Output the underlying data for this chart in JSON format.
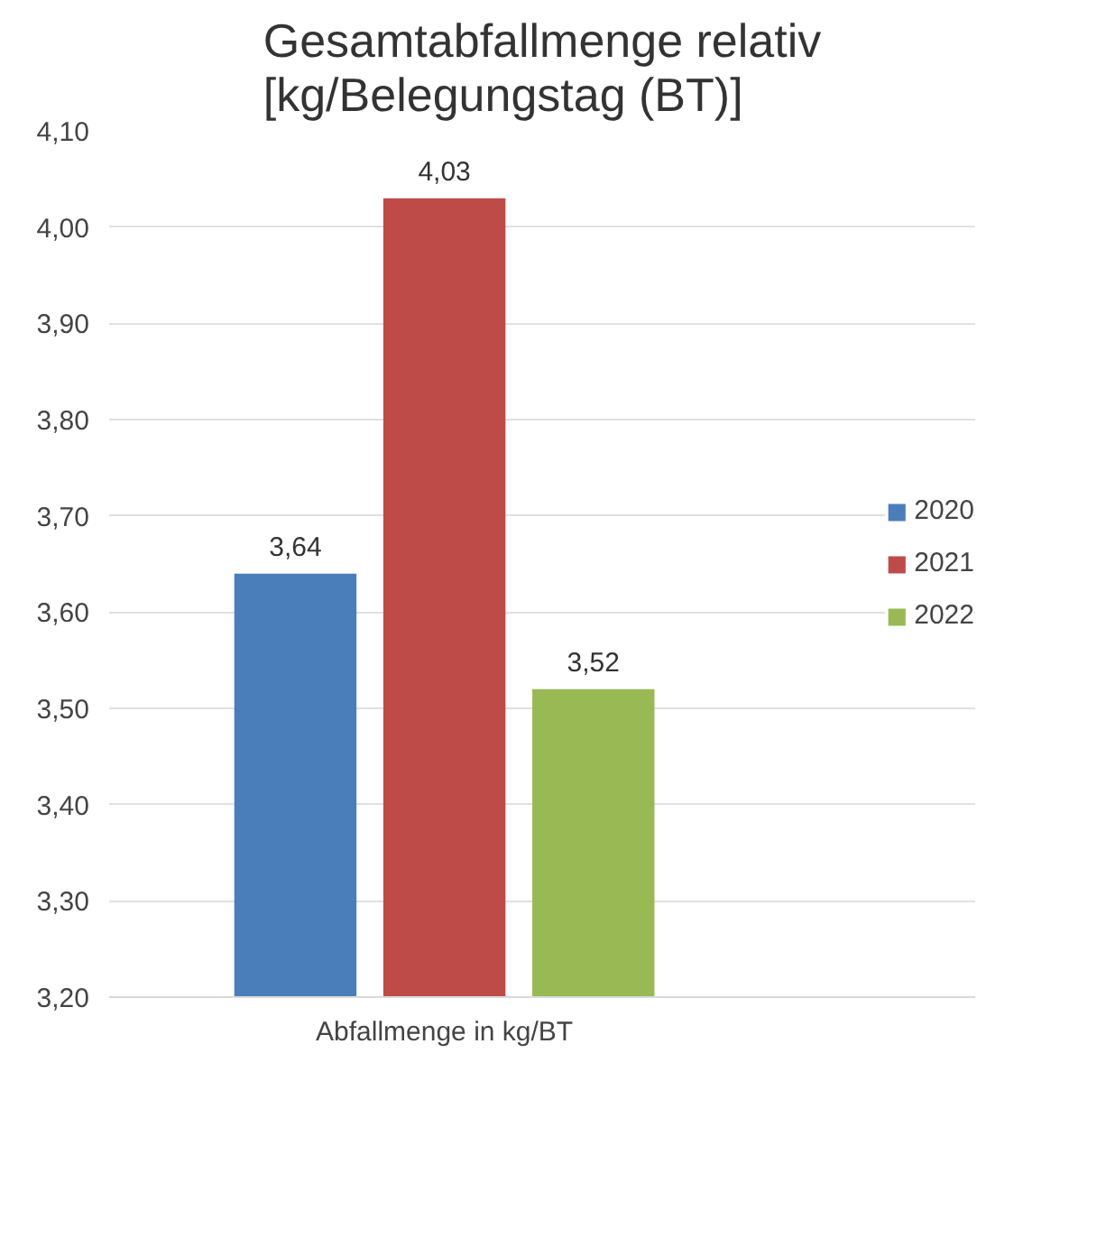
{
  "chart_data": {
    "type": "bar",
    "title": "Gesamtabfallmenge relativ\n[kg/Belegungstag (BT)]",
    "categories": [
      "Abfallmenge in kg/BT"
    ],
    "series": [
      {
        "name": "2020",
        "color": "#4a7ebb",
        "values": [
          3.64
        ],
        "value_labels": [
          "3,64"
        ]
      },
      {
        "name": "2021",
        "color": "#be4b48",
        "values": [
          4.03
        ],
        "value_labels": [
          "4,03"
        ]
      },
      {
        "name": "2022",
        "color": "#98b954",
        "values": [
          3.52
        ],
        "value_labels": [
          "3,52"
        ]
      }
    ],
    "ylim": [
      3.2,
      4.1
    ],
    "yticks": [
      {
        "value": 3.2,
        "label": "3,20"
      },
      {
        "value": 3.3,
        "label": "3,30"
      },
      {
        "value": 3.4,
        "label": "3,40"
      },
      {
        "value": 3.5,
        "label": "3,50"
      },
      {
        "value": 3.6,
        "label": "3,60"
      },
      {
        "value": 3.7,
        "label": "3,70"
      },
      {
        "value": 3.8,
        "label": "3,80"
      },
      {
        "value": 3.9,
        "label": "3,90"
      },
      {
        "value": 4.0,
        "label": "4,00"
      },
      {
        "value": 4.1,
        "label": "4,10"
      }
    ],
    "grid": "y",
    "legend": "right"
  }
}
